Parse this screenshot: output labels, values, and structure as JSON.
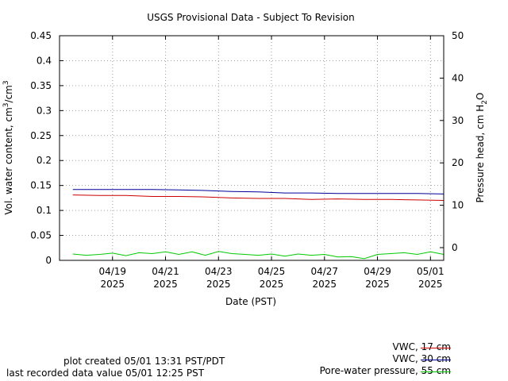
{
  "chart_data": {
    "type": "line",
    "title": "USGS Provisional Data - Subject To Revision",
    "xlabel": "Date (PST)",
    "ylabel_left": "Vol. water content, cm³/cm³",
    "ylabel_left_parts": {
      "main": "Vol. water content, cm",
      "sup1": "3",
      "mid": "/cm",
      "sup2": "3"
    },
    "ylabel_right_parts": {
      "main": "Pressure head, cm H",
      "sub": "2",
      "tail": "O"
    },
    "xlim": [
      "2025-04-17T00:00",
      "2025-05-01T12:00"
    ],
    "ylim_left": [
      0,
      0.45
    ],
    "ylim_right": [
      -3,
      50
    ],
    "yticks_left": [
      "0",
      "0.05",
      "0.1",
      "0.15",
      "0.2",
      "0.25",
      "0.3",
      "0.35",
      "0.4",
      "0.45"
    ],
    "yticks_right": [
      "0",
      "10",
      "20",
      "30",
      "40",
      "50"
    ],
    "xticks": [
      {
        "date": "2025-04-19T00:00",
        "label1": "04/19",
        "label2": "2025"
      },
      {
        "date": "2025-04-21T00:00",
        "label1": "04/21",
        "label2": "2025"
      },
      {
        "date": "2025-04-23T00:00",
        "label1": "04/23",
        "label2": "2025"
      },
      {
        "date": "2025-04-25T00:00",
        "label1": "04/25",
        "label2": "2025"
      },
      {
        "date": "2025-04-27T00:00",
        "label1": "04/27",
        "label2": "2025"
      },
      {
        "date": "2025-04-29T00:00",
        "label1": "04/29",
        "label2": "2025"
      },
      {
        "date": "2025-05-01T00:00",
        "label1": "05/01",
        "label2": "2025"
      }
    ],
    "grid": true,
    "legend_placement": "bottom-right",
    "series": [
      {
        "name": "VWC, 17 cm",
        "axis": "left",
        "color": "#cc0000",
        "points": [
          [
            "2025-04-17T12:00",
            0.131
          ],
          [
            "2025-04-18T12:00",
            0.13
          ],
          [
            "2025-04-19T12:00",
            0.13
          ],
          [
            "2025-04-20T12:00",
            0.128
          ],
          [
            "2025-04-21T12:00",
            0.128
          ],
          [
            "2025-04-22T12:00",
            0.127
          ],
          [
            "2025-04-23T12:00",
            0.125
          ],
          [
            "2025-04-24T12:00",
            0.124
          ],
          [
            "2025-04-25T12:00",
            0.124
          ],
          [
            "2025-04-26T12:00",
            0.122
          ],
          [
            "2025-04-27T12:00",
            0.123
          ],
          [
            "2025-04-28T12:00",
            0.122
          ],
          [
            "2025-04-29T12:00",
            0.122
          ],
          [
            "2025-04-30T12:00",
            0.121
          ],
          [
            "2025-05-01T12:00",
            0.12
          ]
        ]
      },
      {
        "name": "VWC, 30 cm",
        "axis": "left",
        "color": "#000099",
        "points": [
          [
            "2025-04-17T12:00",
            0.142
          ],
          [
            "2025-04-18T12:00",
            0.142
          ],
          [
            "2025-04-19T12:00",
            0.142
          ],
          [
            "2025-04-20T12:00",
            0.142
          ],
          [
            "2025-04-21T12:00",
            0.141
          ],
          [
            "2025-04-22T12:00",
            0.14
          ],
          [
            "2025-04-23T12:00",
            0.138
          ],
          [
            "2025-04-24T12:00",
            0.137
          ],
          [
            "2025-04-25T12:00",
            0.135
          ],
          [
            "2025-04-26T12:00",
            0.135
          ],
          [
            "2025-04-27T12:00",
            0.134
          ],
          [
            "2025-04-28T12:00",
            0.134
          ],
          [
            "2025-04-29T12:00",
            0.134
          ],
          [
            "2025-04-30T12:00",
            0.134
          ],
          [
            "2025-05-01T12:00",
            0.133
          ]
        ]
      },
      {
        "name": "Pore-water pressure, 55 cm",
        "axis": "right",
        "color": "#00cc00",
        "points": [
          [
            "2025-04-17T12:00",
            -1.5
          ],
          [
            "2025-04-18T00:00",
            -1.8
          ],
          [
            "2025-04-18T12:00",
            -1.6
          ],
          [
            "2025-04-19T00:00",
            -1.3
          ],
          [
            "2025-04-19T12:00",
            -1.9
          ],
          [
            "2025-04-20T00:00",
            -1.2
          ],
          [
            "2025-04-20T12:00",
            -1.4
          ],
          [
            "2025-04-21T00:00",
            -1.0
          ],
          [
            "2025-04-21T12:00",
            -1.6
          ],
          [
            "2025-04-22T00:00",
            -1.0
          ],
          [
            "2025-04-22T12:00",
            -1.8
          ],
          [
            "2025-04-23T00:00",
            -0.9
          ],
          [
            "2025-04-23T12:00",
            -1.4
          ],
          [
            "2025-04-24T00:00",
            -1.6
          ],
          [
            "2025-04-24T12:00",
            -1.8
          ],
          [
            "2025-04-25T00:00",
            -1.5
          ],
          [
            "2025-04-25T12:00",
            -2.0
          ],
          [
            "2025-04-26T00:00",
            -1.5
          ],
          [
            "2025-04-26T12:00",
            -1.8
          ],
          [
            "2025-04-27T00:00",
            -1.6
          ],
          [
            "2025-04-27T12:00",
            -2.2
          ],
          [
            "2025-04-28T00:00",
            -2.1
          ],
          [
            "2025-04-28T12:00",
            -2.6
          ],
          [
            "2025-04-29T00:00",
            -1.6
          ],
          [
            "2025-04-29T12:00",
            -1.4
          ],
          [
            "2025-04-30T00:00",
            -1.2
          ],
          [
            "2025-04-30T12:00",
            -1.6
          ],
          [
            "2025-05-01T00:00",
            -1.0
          ],
          [
            "2025-05-01T12:00",
            -1.6
          ]
        ]
      }
    ]
  },
  "footer": {
    "plot_created": "plot created 05/01 13:31 PST/PDT",
    "last_recorded": "last recorded data value 05/01 12:25 PST"
  }
}
